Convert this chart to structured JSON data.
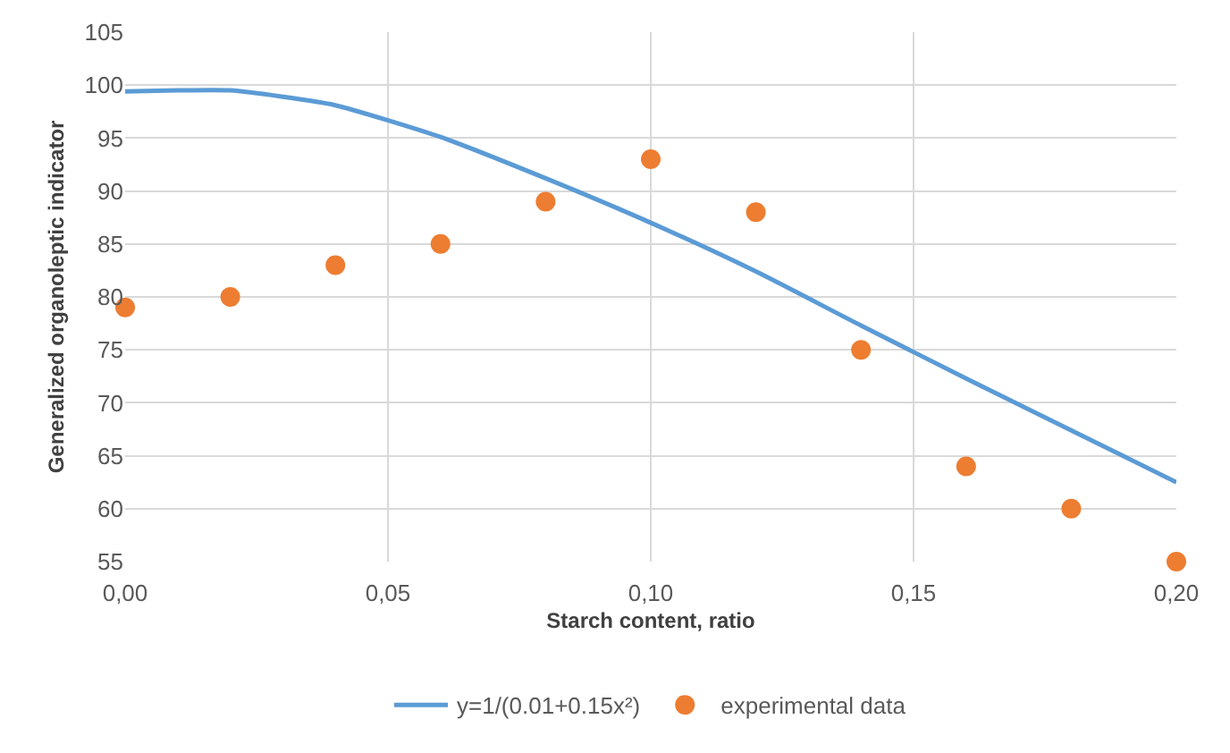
{
  "chart_data": {
    "type": "scatter",
    "xlabel": "Starch content, ratio",
    "ylabel": "Generalized organoleptic indicator",
    "xlim": [
      0,
      0.2
    ],
    "xticks": [
      {
        "value": 0,
        "label": "0,00"
      },
      {
        "value": 0.05,
        "label": "0,05"
      },
      {
        "value": 0.1,
        "label": "0,10"
      },
      {
        "value": 0.15,
        "label": "0,15"
      },
      {
        "value": 0.2,
        "label": "0,20"
      }
    ],
    "ylim": [
      55,
      105
    ],
    "yticks": [
      55,
      60,
      65,
      70,
      75,
      80,
      85,
      90,
      95,
      100,
      105
    ],
    "grid": true,
    "legend": "bottom",
    "series": [
      {
        "name": "y=1/(0.01+0.15x²)",
        "type": "line",
        "color": "#5b9bd5",
        "marker": "none",
        "line_style": "solid",
        "x": [
          0,
          0.01,
          0.02,
          0.03,
          0.04,
          0.06,
          0.08,
          0.1,
          0.12,
          0.14,
          0.16,
          0.18,
          0.2
        ],
        "values": [
          99.4,
          99.5,
          99.5,
          98.9,
          98.1,
          95.1,
          91.2,
          87,
          82.4,
          77.3,
          72.3,
          67.4,
          62.5
        ]
      },
      {
        "name": "experimental data",
        "color": "#ed7d31",
        "marker": "circle",
        "x": [
          0,
          0.02,
          0.04,
          0.06,
          0.08,
          0.1,
          0.12,
          0.14,
          0.16,
          0.18,
          0.2
        ],
        "values": [
          79,
          80,
          83,
          85,
          89,
          93,
          88,
          75,
          64,
          60,
          55
        ]
      }
    ]
  }
}
